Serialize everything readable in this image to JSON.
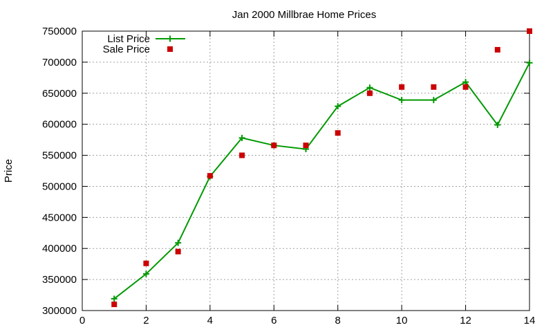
{
  "chart_data": {
    "type": "line",
    "title": "Jan 2000 Millbrae Home Prices",
    "xlabel": "",
    "ylabel": "Price",
    "xlim": [
      0,
      14
    ],
    "ylim": [
      300000,
      750000
    ],
    "xticks": [
      0,
      2,
      4,
      6,
      8,
      10,
      12,
      14
    ],
    "yticks": [
      300000,
      350000,
      400000,
      450000,
      500000,
      550000,
      600000,
      650000,
      700000,
      750000
    ],
    "grid": true,
    "legend_position": "top-left",
    "series": [
      {
        "name": "List Price",
        "style": "line-plus",
        "color": "#009900",
        "x": [
          1,
          2,
          3,
          4,
          5,
          6,
          7,
          8,
          9,
          10,
          11,
          12,
          13,
          14
        ],
        "y": [
          319000,
          359000,
          409000,
          516000,
          578000,
          566000,
          560000,
          629000,
          659000,
          639000,
          639000,
          668000,
          599000,
          699000
        ]
      },
      {
        "name": "Sale Price",
        "style": "square-points",
        "color": "#cc0000",
        "x": [
          1,
          2,
          3,
          4,
          5,
          6,
          7,
          8,
          9,
          10,
          11,
          12,
          13,
          14
        ],
        "y": [
          310000,
          376000,
          395000,
          517000,
          550000,
          566000,
          566000,
          586000,
          650000,
          660000,
          660000,
          660000,
          720000,
          750000
        ]
      }
    ]
  }
}
